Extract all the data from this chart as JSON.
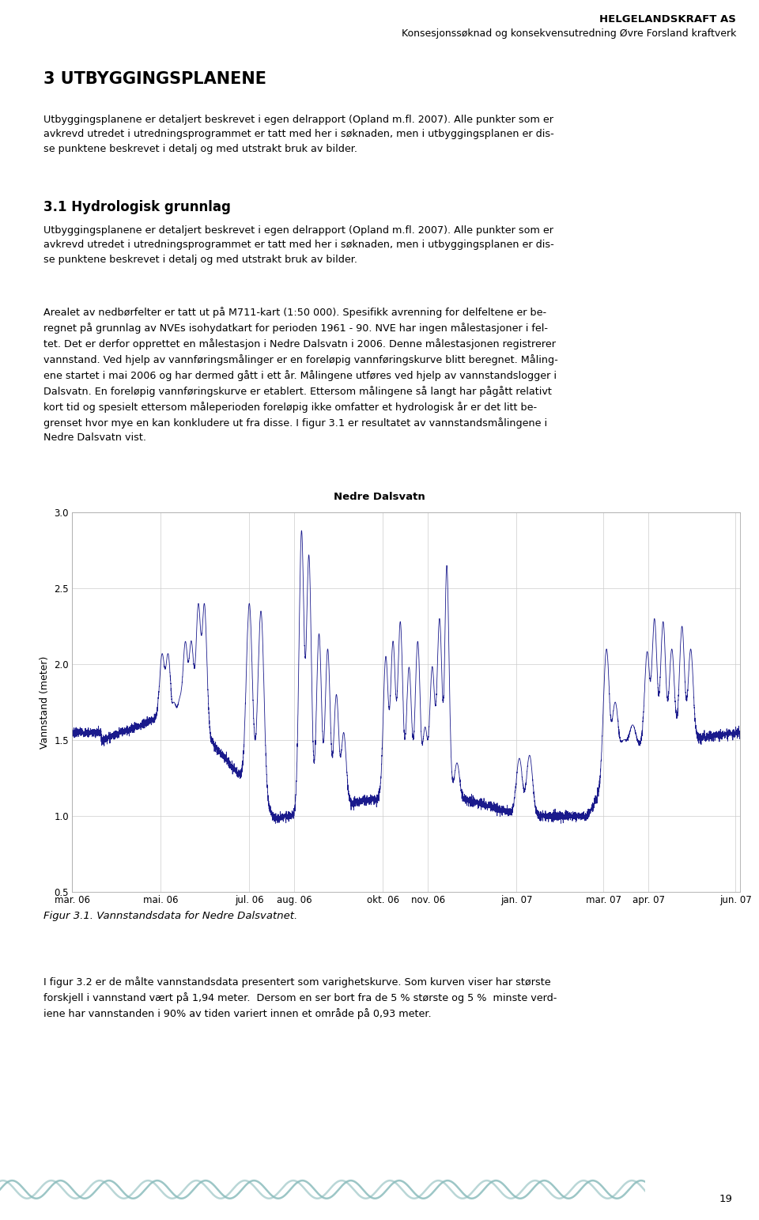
{
  "header_title": "HELGELANDSKRAFT AS",
  "header_subtitle": "Konsesjonssøknad og konsekvensutredning Øvre Forsland kraftverk",
  "header_line_color": "#8bbcbc",
  "page_number": "19",
  "section_title": "3 UTBYGGINGSPLANENE",
  "section_body1": "Utbyggingsplanene er detaljert beskrevet i egen delrapport (Opland m.fl. 2007). Alle punkter som er\navkrevd utredet i utredningsprogrammet er tatt med her i søknaden, men i utbyggingsplanen er dis-\nse punktene beskrevet i detalj og med utstrakt bruk av bilder.",
  "section_sub_title": "3.1 Hydrologisk grunnlag",
  "section_body2": "Utbyggingsplanene er detaljert beskrevet i egen delrapport (Opland m.fl. 2007). Alle punkter som er\navkrevd utredet i utredningsprogrammet er tatt med her i søknaden, men i utbyggingsplanen er dis-\nse punktene beskrevet i detalj og med utstrakt bruk av bilder.",
  "section_body3_lines": [
    "Arealet av nedbørfelter er tatt ut på M711-kart (1:50 000). Spesifikk avrenning for delfeltene er be-",
    "regnet på grunnlag av NVEs isohydatkart for perioden 1961 - 90. NVE har ingen målestasjoner i fel-",
    "tet. Det er derfor opprettet en målestasjon i Nedre Dalsvatn i 2006. Denne målestasjonen registrerer",
    "vannstand. Ved hjelp av vannføringsmålinger er en foreløpig vannføringskurve blitt beregnet. Måling-",
    "ene startet i mai 2006 og har dermed gått i ett år. Målingene utføres ved hjelp av vannstandslogger i",
    "Dalsvatn. En foreløpig vannføringskurve er etablert. Ettersom målingene så langt har pågått relativt",
    "kort tid og spesielt ettersom måleperioden foreløpig ikke omfatter et hydrologisk år er det litt be-",
    "grenset hvor mye en kan konkludere ut fra disse. I figur 3.1 er resultatet av vannstandsmålingene i",
    "Nedre Dalsvatn vist."
  ],
  "chart_title": "Nedre Dalsvatn",
  "chart_ylabel": "Vannstand (meter)",
  "chart_ylim": [
    0.5,
    3.0
  ],
  "chart_yticks": [
    0.5,
    1.0,
    1.5,
    2.0,
    2.5,
    3.0
  ],
  "chart_line_color": "#1a1a8c",
  "chart_bg_color": "#ffffff",
  "chart_grid_color": "#cccccc",
  "x_tick_labels": [
    "mar. 06",
    "mai. 06",
    "jul. 06",
    "aug. 06",
    "okt. 06",
    "nov. 06",
    "jan. 07",
    "mar. 07",
    "apr. 07",
    "jun. 07"
  ],
  "figure_caption": "Figur 3.1. Vannstandsdata for Nedre Dalsvatnet.",
  "body4_lines": [
    "I figur 3.2 er de målte vannstandsdata presentert som varighetskurve. Som kurven viser har største",
    "forskjell i vannstand vært på 1,94 meter.  Dersom en ser bort fra de 5 % største og 5 %  minste verd-",
    "iene har vannstanden i 90% av tiden variert innen et område på 0,93 meter."
  ]
}
